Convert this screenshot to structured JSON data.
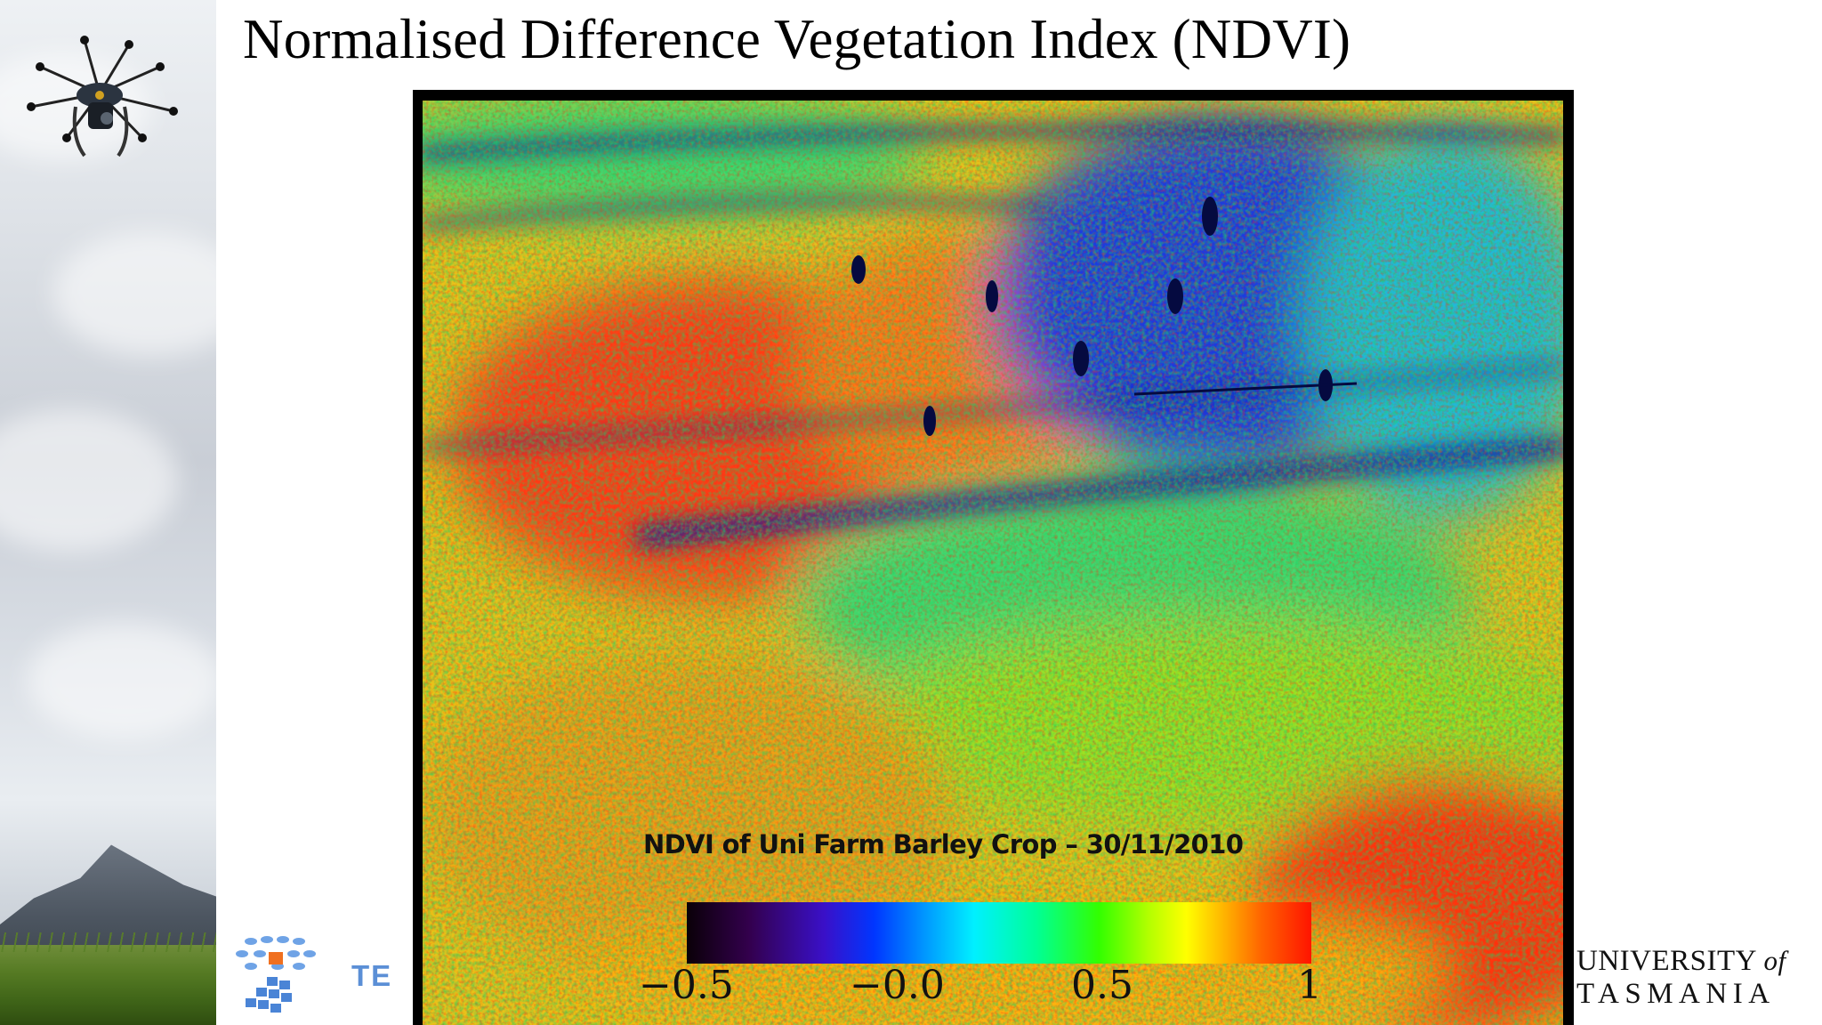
{
  "slide": {
    "title": "Normalised Difference Vegetation Index (NDVI)"
  },
  "figure": {
    "caption": "NDVI of Uni Farm Barley Crop – 30/11/2010",
    "colorbar": {
      "ticks": [
        "−0.5",
        "−0.0",
        "0.5",
        "1"
      ],
      "range": [
        -0.5,
        1
      ],
      "colormap": [
        "#0a0008",
        "#3a10c8",
        "#0036ff",
        "#00f0ff",
        "#32ff00",
        "#ffff00",
        "#ff6400",
        "#ff1400"
      ]
    }
  },
  "logos": {
    "tern": "TE",
    "university_line1": "UNIVERSITY",
    "university_of": "of",
    "university_line2": "TASMANIA"
  },
  "icons": [
    "drone-icon",
    "tern-logo-icon"
  ]
}
